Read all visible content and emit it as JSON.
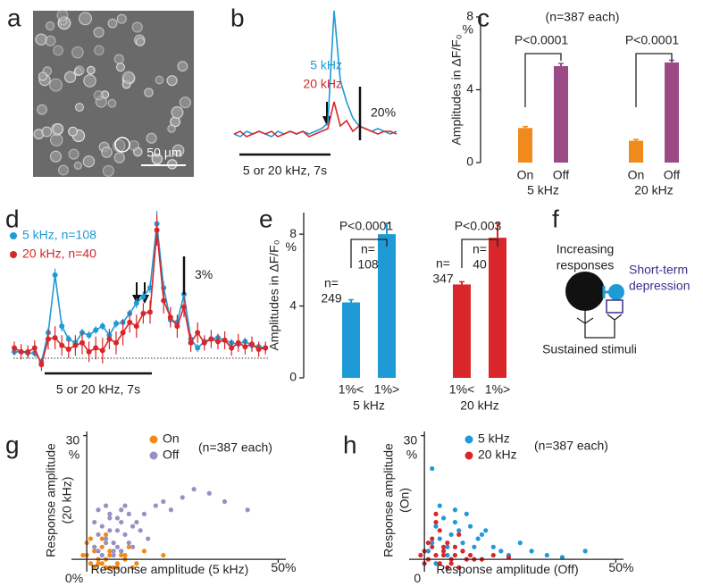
{
  "panel_labels": [
    "a",
    "b",
    "c",
    "d",
    "e",
    "f",
    "g",
    "h"
  ],
  "panel_a": {
    "scale_bar": "50 µm"
  },
  "panel_f": {
    "top_label": [
      "Increasing",
      "responses"
    ],
    "right_label": [
      "Short-term",
      "depression"
    ],
    "bottom_label": "Sustained stimuli"
  },
  "chart_data": [
    {
      "type": "line",
      "series": [
        {
          "name": "5 kHz",
          "color": "#1e9ad6",
          "values": [
            0,
            -1,
            1,
            0,
            1,
            0,
            -1,
            1,
            0,
            1,
            0,
            1,
            0,
            1,
            2,
            4,
            46,
            20,
            12,
            6,
            3,
            2,
            1,
            2,
            1,
            0,
            1
          ]
        },
        {
          "name": "20 kHz",
          "color": "#d8262b",
          "values": [
            0,
            1,
            -1,
            0,
            1,
            0,
            1,
            -1,
            0,
            1,
            0,
            1,
            -1,
            0,
            1,
            2,
            12,
            3,
            5,
            1,
            3,
            2,
            1,
            0,
            1,
            1,
            0
          ]
        }
      ],
      "scale_bar": {
        "value": 20,
        "label": "20%"
      },
      "stimulus": "5 or 20 kHz, 7s"
    },
    {
      "type": "bar",
      "ylabel": "Amplitudes in ΔF/F₀",
      "ylim": [
        0,
        8
      ],
      "yticks": [
        0,
        4,
        8
      ],
      "y_unit": "%",
      "annotation": "(n=387 each)",
      "categories": [
        "On",
        "Off",
        "On",
        "Off"
      ],
      "groups": [
        "5 kHz",
        "20 kHz"
      ],
      "values": [
        1.9,
        5.3,
        1.2,
        5.5
      ],
      "errors": [
        0.08,
        0.15,
        0.07,
        0.12
      ],
      "colors": [
        "#f08a1c",
        "#9b4a86",
        "#f08a1c",
        "#9b4a86"
      ],
      "p_values": [
        "P<0.0001",
        "P<0.0001"
      ]
    },
    {
      "type": "line_errorbar",
      "series": [
        {
          "name": "5 kHz, n=108",
          "color": "#1e9ad6",
          "values": [
            0.5,
            0.5,
            0.4,
            0.4,
            -0.3,
            2,
            6.5,
            2.5,
            1.5,
            1.2,
            2,
            1.8,
            2.2,
            2.5,
            1.8,
            2.7,
            2.8,
            3.5,
            4.3,
            4.8,
            5.5,
            10.5,
            5.5,
            3,
            2.8,
            5,
            1.5,
            0.8,
            1.3,
            1.5,
            1.6,
            1.4,
            1.2,
            1.1,
            1.3,
            1.0,
            0.9,
            0.8
          ],
          "errors": [
            0.3,
            0.3,
            0.3,
            0.3,
            0.3,
            0.4,
            0.5,
            0.4,
            0.3,
            0.3,
            0.3,
            0.3,
            0.3,
            0.3,
            0.3,
            0.3,
            0.3,
            0.3,
            0.4,
            0.4,
            0.4,
            1.0,
            0.5,
            0.4,
            0.3,
            0.4,
            0.3,
            0.3,
            0.3,
            0.3,
            0.3,
            0.3,
            0.3,
            0.3,
            0.3,
            0.3,
            0.3,
            0.3
          ]
        },
        {
          "name": "20 kHz, n=40",
          "color": "#d8262b",
          "values": [
            0.8,
            0.5,
            0.5,
            0.8,
            -0.5,
            1.5,
            1.6,
            1,
            0.7,
            1,
            1.2,
            0.5,
            0.8,
            0.6,
            1.5,
            1.2,
            2,
            2.8,
            2.5,
            3.5,
            3.6,
            10,
            4.5,
            3.2,
            2.5,
            4,
            1.2,
            2,
            1.2,
            1.5,
            1.3,
            1.4,
            0.8,
            1.2,
            0.9,
            1.1,
            0.7,
            0.8
          ],
          "errors": [
            0.5,
            0.6,
            0.5,
            0.6,
            0.5,
            0.8,
            0.9,
            0.8,
            0.7,
            0.8,
            0.9,
            0.8,
            0.9,
            1.0,
            0.8,
            0.9,
            1.0,
            0.8,
            0.9,
            0.8,
            0.9,
            1.2,
            1.0,
            0.8,
            0.9,
            0.8,
            0.7,
            0.8,
            0.6,
            0.7,
            0.6,
            0.7,
            0.6,
            0.7,
            0.6,
            0.6,
            0.6,
            0.5
          ]
        }
      ],
      "scale_bar": {
        "value": 3,
        "label": "3%"
      },
      "stimulus": "5 or 20 kHz, 7s"
    },
    {
      "type": "bar",
      "ylabel": "Amplitudes in ΔF/F₀",
      "ylim": [
        0,
        9.2
      ],
      "yticks": [
        0,
        4,
        8
      ],
      "y_unit": "%",
      "categories": [
        "1%<",
        "1%>",
        "1%<",
        "1%>"
      ],
      "groups": [
        "5 kHz",
        "20 kHz"
      ],
      "values": [
        4.2,
        8.0,
        5.2,
        7.8
      ],
      "errors": [
        0.15,
        0.6,
        0.15,
        0.8
      ],
      "colors": [
        "#1e9ad6",
        "#1e9ad6",
        "#d8262b",
        "#d8262b"
      ],
      "n_labels": [
        [
          "n=",
          "249"
        ],
        [
          "n=",
          "108"
        ],
        [
          "n=",
          "347"
        ],
        [
          "n=",
          "40"
        ]
      ],
      "p_values": [
        "P<0.0001",
        "P<0.003"
      ]
    },
    {
      "type": "scatter",
      "xlabel": "Response amplitude (5 kHz)",
      "ylabel": [
        "Response amplitude",
        "(20 kHz)"
      ],
      "xlim": [
        -4,
        52
      ],
      "ylim": [
        -3,
        31
      ],
      "xticks": [
        {
          "value": 0,
          "label": "0%"
        },
        {
          "value": 50,
          "label": "50%"
        }
      ],
      "yticks": [
        30
      ],
      "y_unit": "%",
      "annotation": "(n=387 each)",
      "series": [
        {
          "name": "On",
          "color": "#f08a1c",
          "x": [
            0,
            1,
            2,
            3,
            4,
            5,
            6,
            7,
            8,
            9,
            10,
            11,
            12,
            1,
            3,
            5,
            7,
            9,
            2,
            4,
            6,
            8,
            -1,
            0,
            2,
            5,
            10,
            13,
            15,
            20,
            4,
            6
          ],
          "values": [
            1,
            -1,
            2,
            0,
            3,
            -2,
            1,
            4,
            -1,
            2,
            0,
            3,
            -2,
            5,
            -1,
            6,
            -2,
            1,
            3,
            -1,
            2,
            -2,
            1,
            4,
            -2,
            0,
            1,
            -1,
            2,
            1,
            5,
            -2
          ]
        },
        {
          "name": "Off",
          "color": "#9b8ec4",
          "x": [
            2,
            3,
            4,
            5,
            6,
            7,
            8,
            9,
            10,
            11,
            12,
            3,
            5,
            7,
            9,
            4,
            6,
            8,
            2,
            3,
            5,
            6,
            8,
            10,
            13,
            15,
            18,
            20,
            22,
            25,
            28,
            32,
            36,
            42,
            14,
            16,
            12,
            9,
            7,
            11
          ],
          "values": [
            3,
            6,
            8,
            5,
            10,
            4,
            7,
            9,
            6,
            11,
            8,
            12,
            13,
            2,
            12,
            1,
            7,
            3,
            9,
            2,
            4,
            11,
            10,
            13,
            9,
            11,
            13,
            14,
            12,
            15,
            17,
            16,
            14,
            12,
            7,
            5,
            3,
            2,
            1,
            4
          ]
        }
      ]
    },
    {
      "type": "scatter",
      "xlabel": "Response amplitude (Off)",
      "ylabel": [
        "Response amplitude",
        "(On)"
      ],
      "xlim": [
        -4,
        52
      ],
      "ylim": [
        -3,
        31
      ],
      "xticks": [
        0,
        {
          "value": 50,
          "label": "50%"
        }
      ],
      "yticks": [
        30
      ],
      "y_unit": "%",
      "annotation": "(n=387 each)",
      "series": [
        {
          "name": "5 kHz",
          "color": "#1e9ad6",
          "x": [
            1,
            2,
            3,
            4,
            5,
            6,
            7,
            8,
            9,
            10,
            12,
            14,
            16,
            18,
            20,
            22,
            25,
            28,
            32,
            36,
            42,
            2,
            4,
            6,
            8,
            10,
            15,
            3,
            11,
            13
          ],
          "values": [
            2,
            4,
            8,
            5,
            10,
            3,
            6,
            9,
            7,
            4,
            8,
            5,
            7,
            3,
            2,
            1,
            4,
            2,
            1,
            0.5,
            2,
            22,
            13,
            1,
            12,
            2,
            6,
            -1,
            11,
            3
          ]
        },
        {
          "name": "20 kHz",
          "color": "#d8262b",
          "x": [
            -1,
            0,
            1,
            2,
            3,
            4,
            5,
            6,
            7,
            8,
            9,
            10,
            11,
            12,
            13,
            2,
            4,
            6,
            8,
            3,
            5,
            7,
            1,
            9,
            15,
            18,
            22,
            3,
            0,
            5
          ],
          "values": [
            1,
            2,
            0,
            3,
            1,
            -1,
            2,
            4,
            0,
            1,
            -2,
            2,
            0,
            1,
            0,
            5,
            7,
            -2,
            3,
            9,
            1,
            -1,
            4,
            6,
            0,
            1,
            0.5,
            11,
            -1,
            3
          ]
        }
      ]
    }
  ]
}
